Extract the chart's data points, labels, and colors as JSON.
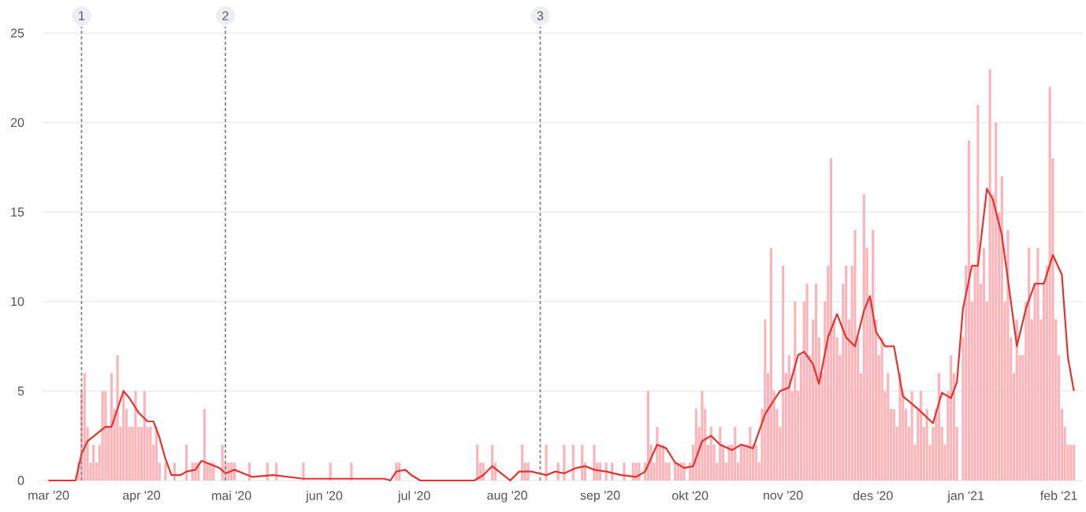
{
  "chart_data": {
    "type": "bar",
    "x": [
      "2020-03-01",
      "2020-03-02",
      "2020-03-03",
      "2020-03-04",
      "2020-03-05",
      "2020-03-06",
      "2020-03-07",
      "2020-03-08",
      "2020-03-09",
      "2020-03-10",
      "2020-03-11",
      "2020-03-12",
      "2020-03-13",
      "2020-03-14",
      "2020-03-15",
      "2020-03-16",
      "2020-03-17",
      "2020-03-18",
      "2020-03-19",
      "2020-03-20",
      "2020-03-21",
      "2020-03-22",
      "2020-03-23",
      "2020-03-24",
      "2020-03-25",
      "2020-03-26",
      "2020-03-27",
      "2020-03-28",
      "2020-03-29",
      "2020-03-30",
      "2020-03-31",
      "2020-04-01",
      "2020-04-02",
      "2020-04-03",
      "2020-04-04",
      "2020-04-05",
      "2020-04-06",
      "2020-04-07",
      "2020-04-08",
      "2020-04-09",
      "2020-04-10",
      "2020-04-11",
      "2020-04-12",
      "2020-04-13",
      "2020-04-14",
      "2020-04-15",
      "2020-04-16",
      "2020-04-17",
      "2020-04-18",
      "2020-04-19",
      "2020-04-20",
      "2020-04-21",
      "2020-04-22",
      "2020-04-23",
      "2020-04-24",
      "2020-04-25",
      "2020-04-26",
      "2020-04-27",
      "2020-04-28",
      "2020-04-29",
      "2020-04-30",
      "2020-05-01",
      "2020-05-02",
      "2020-05-03",
      "2020-05-04",
      "2020-05-05",
      "2020-05-06",
      "2020-05-07",
      "2020-05-08",
      "2020-05-09",
      "2020-05-10",
      "2020-05-11",
      "2020-05-12",
      "2020-05-13",
      "2020-05-14",
      "2020-05-15",
      "2020-05-16",
      "2020-05-17",
      "2020-05-18",
      "2020-05-19",
      "2020-05-20",
      "2020-05-21",
      "2020-05-22",
      "2020-05-23",
      "2020-05-24",
      "2020-05-25",
      "2020-05-26",
      "2020-05-27",
      "2020-05-28",
      "2020-05-29",
      "2020-05-30",
      "2020-05-31",
      "2020-06-01",
      "2020-06-02",
      "2020-06-03",
      "2020-06-04",
      "2020-06-05",
      "2020-06-06",
      "2020-06-07",
      "2020-06-08",
      "2020-06-09",
      "2020-06-10",
      "2020-06-11",
      "2020-06-12",
      "2020-06-13",
      "2020-06-14",
      "2020-06-15",
      "2020-06-16",
      "2020-06-17",
      "2020-06-18",
      "2020-06-19",
      "2020-06-20",
      "2020-06-21",
      "2020-06-22",
      "2020-06-23",
      "2020-06-24",
      "2020-06-25",
      "2020-06-26",
      "2020-06-27",
      "2020-06-28",
      "2020-06-29",
      "2020-06-30",
      "2020-07-01",
      "2020-07-02",
      "2020-07-03",
      "2020-07-04",
      "2020-07-05",
      "2020-07-06",
      "2020-07-07",
      "2020-07-08",
      "2020-07-09",
      "2020-07-10",
      "2020-07-11",
      "2020-07-12",
      "2020-07-13",
      "2020-07-14",
      "2020-07-15",
      "2020-07-16",
      "2020-07-17",
      "2020-07-18",
      "2020-07-19",
      "2020-07-20",
      "2020-07-21",
      "2020-07-22",
      "2020-07-23",
      "2020-07-24",
      "2020-07-25",
      "2020-07-26",
      "2020-07-27",
      "2020-07-28",
      "2020-07-29",
      "2020-07-30",
      "2020-07-31",
      "2020-08-01",
      "2020-08-02",
      "2020-08-03",
      "2020-08-04",
      "2020-08-05",
      "2020-08-06",
      "2020-08-07",
      "2020-08-08",
      "2020-08-09",
      "2020-08-10",
      "2020-08-11",
      "2020-08-12",
      "2020-08-13",
      "2020-08-14",
      "2020-08-15",
      "2020-08-16",
      "2020-08-17",
      "2020-08-18",
      "2020-08-19",
      "2020-08-20",
      "2020-08-21",
      "2020-08-22",
      "2020-08-23",
      "2020-08-24",
      "2020-08-25",
      "2020-08-26",
      "2020-08-27",
      "2020-08-28",
      "2020-08-29",
      "2020-08-30",
      "2020-08-31",
      "2020-09-01",
      "2020-09-02",
      "2020-09-03",
      "2020-09-04",
      "2020-09-05",
      "2020-09-06",
      "2020-09-07",
      "2020-09-08",
      "2020-09-09",
      "2020-09-10",
      "2020-09-11",
      "2020-09-12",
      "2020-09-13",
      "2020-09-14",
      "2020-09-15",
      "2020-09-16",
      "2020-09-17",
      "2020-09-18",
      "2020-09-19",
      "2020-09-20",
      "2020-09-21",
      "2020-09-22",
      "2020-09-23",
      "2020-09-24",
      "2020-09-25",
      "2020-09-26",
      "2020-09-27",
      "2020-09-28",
      "2020-09-29",
      "2020-09-30",
      "2020-10-01",
      "2020-10-02",
      "2020-10-03",
      "2020-10-04",
      "2020-10-05",
      "2020-10-06",
      "2020-10-07",
      "2020-10-08",
      "2020-10-09",
      "2020-10-10",
      "2020-10-11",
      "2020-10-12",
      "2020-10-13",
      "2020-10-14",
      "2020-10-15",
      "2020-10-16",
      "2020-10-17",
      "2020-10-18",
      "2020-10-19",
      "2020-10-20",
      "2020-10-21",
      "2020-10-22",
      "2020-10-23",
      "2020-10-24",
      "2020-10-25",
      "2020-10-26",
      "2020-10-27",
      "2020-10-28",
      "2020-10-29",
      "2020-10-30",
      "2020-10-31",
      "2020-11-01",
      "2020-11-02",
      "2020-11-03",
      "2020-11-04",
      "2020-11-05",
      "2020-11-06",
      "2020-11-07",
      "2020-11-08",
      "2020-11-09",
      "2020-11-10",
      "2020-11-11",
      "2020-11-12",
      "2020-11-13",
      "2020-11-14",
      "2020-11-15",
      "2020-11-16",
      "2020-11-17",
      "2020-11-18",
      "2020-11-19",
      "2020-11-20",
      "2020-11-21",
      "2020-11-22",
      "2020-11-23",
      "2020-11-24",
      "2020-11-25",
      "2020-11-26",
      "2020-11-27",
      "2020-11-28",
      "2020-11-29",
      "2020-11-30",
      "2020-12-01",
      "2020-12-02",
      "2020-12-03",
      "2020-12-04",
      "2020-12-05",
      "2020-12-06",
      "2020-12-07",
      "2020-12-08",
      "2020-12-09",
      "2020-12-10",
      "2020-12-11",
      "2020-12-12",
      "2020-12-13",
      "2020-12-14",
      "2020-12-15",
      "2020-12-16",
      "2020-12-17",
      "2020-12-18",
      "2020-12-19",
      "2020-12-20",
      "2020-12-21",
      "2020-12-22",
      "2020-12-23",
      "2020-12-24",
      "2020-12-25",
      "2020-12-26",
      "2020-12-27",
      "2020-12-28",
      "2020-12-29",
      "2020-12-30",
      "2020-12-31",
      "2021-01-01",
      "2021-01-02",
      "2021-01-03",
      "2021-01-04",
      "2021-01-05",
      "2021-01-06",
      "2021-01-07",
      "2021-01-08",
      "2021-01-09",
      "2021-01-10",
      "2021-01-11",
      "2021-01-12",
      "2021-01-13",
      "2021-01-14",
      "2021-01-15",
      "2021-01-16",
      "2021-01-17",
      "2021-01-18",
      "2021-01-19",
      "2021-01-20",
      "2021-01-21",
      "2021-01-22",
      "2021-01-23",
      "2021-01-24",
      "2021-01-25",
      "2021-01-26",
      "2021-01-27",
      "2021-01-28",
      "2021-01-29",
      "2021-01-30",
      "2021-01-31",
      "2021-02-01",
      "2021-02-02",
      "2021-02-03",
      "2021-02-04",
      "2021-02-05",
      "2021-02-06"
    ],
    "series": [
      {
        "color": "#ffb3b8",
        "values": [
          0,
          0,
          0,
          0,
          0,
          0,
          0,
          0,
          0,
          0,
          1,
          5,
          6,
          3,
          1,
          2,
          1,
          2,
          5,
          5,
          3,
          6,
          4,
          7,
          3,
          5,
          4,
          3,
          3,
          5,
          3,
          3,
          5,
          3,
          3,
          2,
          3,
          1,
          0,
          1,
          0,
          0,
          1,
          0,
          0,
          0,
          2,
          0,
          1,
          1,
          1,
          0,
          4,
          1,
          1,
          1,
          0,
          0,
          2,
          1,
          1,
          1,
          1,
          0,
          0,
          0,
          0,
          1,
          0,
          0,
          0,
          0,
          0,
          1,
          0,
          0,
          1,
          0,
          0,
          0,
          0,
          0,
          0,
          0,
          0,
          1,
          0,
          0,
          0,
          0,
          0,
          0,
          0,
          0,
          1,
          0,
          0,
          0,
          0,
          0,
          0,
          1,
          0,
          0,
          0,
          0,
          0,
          0,
          0,
          0,
          0,
          0,
          0,
          0,
          0,
          0,
          1,
          1,
          0,
          0,
          0,
          0,
          0,
          0,
          0,
          0,
          0,
          0,
          0,
          0,
          0,
          0,
          0,
          0,
          0,
          0,
          0,
          0,
          0,
          0,
          0,
          0,
          0,
          2,
          1,
          1,
          0,
          0,
          2,
          1,
          0,
          0,
          0,
          0,
          0,
          0,
          0,
          0,
          2,
          1,
          1,
          0,
          0,
          0,
          0,
          0,
          2,
          0,
          0,
          0,
          1,
          0,
          2,
          0,
          0,
          2,
          0,
          0,
          2,
          1,
          0,
          0,
          2,
          1,
          1,
          0,
          1,
          0,
          1,
          0,
          0,
          0,
          1,
          0,
          0,
          1,
          1,
          1,
          0,
          1,
          5,
          2,
          1,
          3,
          2,
          2,
          1,
          1,
          0,
          1,
          1,
          1,
          1,
          0,
          1,
          2,
          4,
          3,
          5,
          4,
          2,
          3,
          2,
          1,
          3,
          2,
          1,
          2,
          2,
          3,
          1,
          2,
          2,
          2,
          3,
          2,
          2,
          1,
          4,
          9,
          6,
          13,
          5,
          4,
          3,
          12,
          6,
          7,
          5,
          10,
          5,
          7,
          10,
          11,
          7,
          9,
          11,
          8,
          6,
          10,
          12,
          18,
          9,
          8,
          7,
          11,
          12,
          9,
          12,
          14,
          8,
          6,
          16,
          13,
          10,
          14,
          9,
          7,
          8,
          5,
          6,
          4,
          4,
          3,
          6,
          5,
          4,
          3,
          5,
          2,
          4,
          5,
          3,
          4,
          2,
          3,
          4,
          6,
          3,
          2,
          5,
          7,
          6,
          3,
          0,
          8,
          12,
          19,
          10,
          12,
          21,
          11,
          13,
          10,
          23,
          16,
          20,
          15,
          17,
          10,
          14,
          8,
          6,
          9,
          7,
          7,
          10,
          13,
          9,
          11,
          13,
          9,
          11,
          12,
          22,
          18,
          9,
          7,
          4,
          3,
          2,
          2,
          2
        ]
      },
      {
        "type": "line",
        "color": "#e8322f",
        "x": [
          "2020-03-01",
          "2020-03-10",
          "2020-03-12",
          "2020-03-14",
          "2020-03-17",
          "2020-03-20",
          "2020-03-22",
          "2020-03-25",
          "2020-03-26",
          "2020-03-28",
          "2020-03-31",
          "2020-04-03",
          "2020-04-05",
          "2020-04-07",
          "2020-04-09",
          "2020-04-11",
          "2020-04-14",
          "2020-04-16",
          "2020-04-19",
          "2020-04-21",
          "2020-04-24",
          "2020-04-27",
          "2020-04-29",
          "2020-05-02",
          "2020-05-05",
          "2020-05-08",
          "2020-05-15",
          "2020-05-20",
          "2020-05-25",
          "2020-06-09",
          "2020-06-21",
          "2020-06-23",
          "2020-06-25",
          "2020-06-28",
          "2020-06-30",
          "2020-07-03",
          "2020-07-21",
          "2020-07-24",
          "2020-07-27",
          "2020-07-30",
          "2020-08-02",
          "2020-08-05",
          "2020-08-09",
          "2020-08-14",
          "2020-08-17",
          "2020-08-20",
          "2020-08-24",
          "2020-08-27",
          "2020-08-30",
          "2020-09-03",
          "2020-09-08",
          "2020-09-13",
          "2020-09-16",
          "2020-09-20",
          "2020-09-23",
          "2020-09-26",
          "2020-09-29",
          "2020-10-02",
          "2020-10-05",
          "2020-10-08",
          "2020-10-11",
          "2020-10-15",
          "2020-10-18",
          "2020-10-22",
          "2020-10-26",
          "2020-10-29",
          "2020-10-31",
          "2020-11-03",
          "2020-11-06",
          "2020-11-08",
          "2020-11-11",
          "2020-11-13",
          "2020-11-16",
          "2020-11-19",
          "2020-11-22",
          "2020-11-25",
          "2020-11-28",
          "2020-11-30",
          "2020-12-02",
          "2020-12-05",
          "2020-12-08",
          "2020-12-11",
          "2020-12-16",
          "2020-12-21",
          "2020-12-24",
          "2020-12-27",
          "2020-12-29",
          "2020-12-31",
          "2021-01-03",
          "2021-01-05",
          "2021-01-08",
          "2021-01-10",
          "2021-01-13",
          "2021-01-16",
          "2021-01-18",
          "2021-01-21",
          "2021-01-24",
          "2021-01-27",
          "2021-01-30",
          "2021-02-02",
          "2021-02-04",
          "2021-02-06"
        ],
        "values": [
          0,
          0,
          1.5,
          2.2,
          2.6,
          3,
          3,
          4.5,
          5,
          4.6,
          3.8,
          3.3,
          3.3,
          2.4,
          1.2,
          0.3,
          0.3,
          0.5,
          0.6,
          1.1,
          0.9,
          0.7,
          0.4,
          0.6,
          0.4,
          0.2,
          0.3,
          0.2,
          0.1,
          0.1,
          0.1,
          0,
          0.5,
          0.6,
          0.3,
          0,
          0,
          0.3,
          0.8,
          0.4,
          0,
          0.5,
          0.5,
          0.3,
          0.5,
          0.4,
          0.7,
          0.8,
          0.6,
          0.5,
          0.3,
          0.2,
          0.5,
          2,
          1.8,
          1,
          0.7,
          0.8,
          2.2,
          2.5,
          2,
          1.7,
          2,
          1.8,
          3.7,
          4.5,
          5,
          5.2,
          7,
          7.2,
          6.5,
          5.4,
          8,
          9.3,
          8,
          7.5,
          9.5,
          10.3,
          8.3,
          7.5,
          7.5,
          4.7,
          4,
          3.2,
          4.9,
          4.6,
          5.5,
          9.6,
          12,
          12,
          16.3,
          15.7,
          13.7,
          10,
          7.5,
          9.6,
          11,
          11,
          12.6,
          11.5,
          6.9,
          5
        ]
      }
    ],
    "xlim": [
      "2020-02-28",
      "2021-02-09"
    ],
    "xticks": [
      {
        "value": "2020-03-01",
        "label": "mar '20"
      },
      {
        "value": "2020-04-01",
        "label": "apr '20"
      },
      {
        "value": "2020-05-01",
        "label": "mai '20"
      },
      {
        "value": "2020-06-01",
        "label": "jun '20"
      },
      {
        "value": "2020-07-01",
        "label": "jul '20"
      },
      {
        "value": "2020-08-01",
        "label": "aug '20"
      },
      {
        "value": "2020-09-01",
        "label": "sep '20"
      },
      {
        "value": "2020-10-01",
        "label": "okt '20"
      },
      {
        "value": "2020-11-01",
        "label": "nov '20"
      },
      {
        "value": "2020-12-01",
        "label": "des '20"
      },
      {
        "value": "2021-01-01",
        "label": "jan '21"
      },
      {
        "value": "2021-02-01",
        "label": "feb '21"
      }
    ],
    "ylim": [
      0,
      25
    ],
    "yticks": [
      0,
      5,
      10,
      15,
      20,
      25
    ],
    "grid": "y",
    "ref_lines": [
      {
        "axis": "x",
        "value": "2020-03-12",
        "label": "1",
        "color": "#888888",
        "line_style": "dashed"
      },
      {
        "axis": "x",
        "value": "2020-04-29",
        "label": "2",
        "color": "#888888",
        "line_style": "dashed"
      },
      {
        "axis": "x",
        "value": "2020-08-12",
        "label": "3",
        "color": "#888888",
        "line_style": "dashed"
      }
    ]
  }
}
